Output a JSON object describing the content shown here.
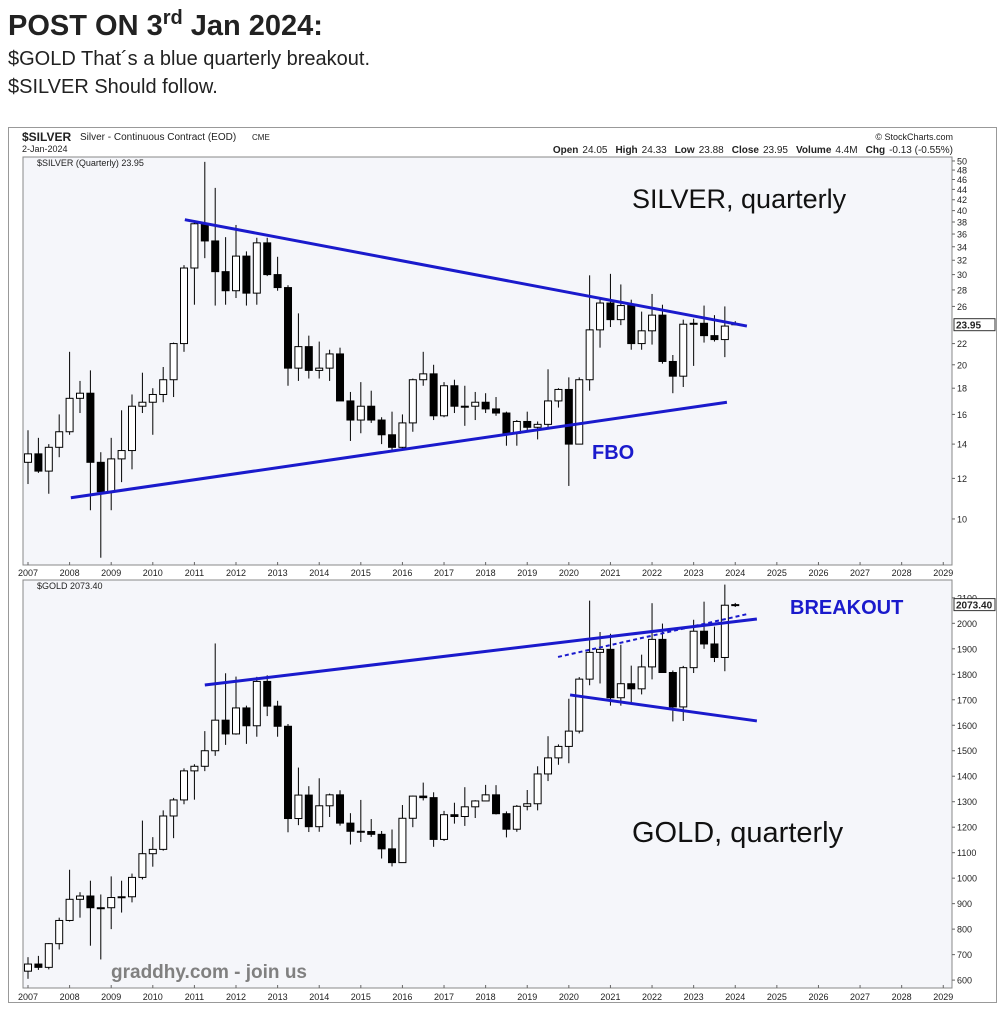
{
  "header": {
    "title": "POST ON 3",
    "title_sup": "rd",
    "title_rest": " Jan 2024:",
    "lines": [
      "$GOLD That´s a blue quarterly breakout.",
      "$SILVER Should follow."
    ]
  },
  "panel": {
    "symbol": "$SILVER",
    "description": "Silver - Continuous Contract (EOD)",
    "exchange": "CME",
    "date": "2-Jan-2024",
    "credit": "© StockCharts.com",
    "quote": [
      {
        "label": "Open",
        "value": "24.05"
      },
      {
        "label": "High",
        "value": "24.33"
      },
      {
        "label": "Low",
        "value": "23.88"
      },
      {
        "label": "Close",
        "value": "23.95"
      },
      {
        "label": "Volume",
        "value": "4.4M"
      },
      {
        "label": "Chg",
        "value": "-0.13 (-0.55%)"
      }
    ]
  },
  "watermark": "graddhy.com - join us",
  "chart_data": [
    {
      "type": "candlestick",
      "legend": "$SILVER (Quarterly) 23.95",
      "last_label": "23.95",
      "log_scale": true,
      "grid": false,
      "up_color": "#ffffff",
      "down_color": "#000000",
      "xlim": [
        2006.88,
        2029.21
      ],
      "xticks": [
        2007,
        2008,
        2009,
        2010,
        2011,
        2012,
        2013,
        2014,
        2015,
        2016,
        2017,
        2018,
        2019,
        2020,
        2021,
        2022,
        2023,
        2024,
        2025,
        2026,
        2027,
        2028,
        2029
      ],
      "ylim": [
        8.13,
        50.9
      ],
      "yticks": [
        10,
        12,
        14,
        16,
        18,
        20,
        22,
        26,
        28,
        30,
        32,
        34,
        36,
        38,
        40,
        42,
        44,
        46,
        48,
        50
      ],
      "x": [
        2007,
        2007.25,
        2007.5,
        2007.75,
        2008,
        2008.25,
        2008.5,
        2008.75,
        2009,
        2009.25,
        2009.5,
        2009.75,
        2010,
        2010.25,
        2010.5,
        2010.75,
        2011,
        2011.25,
        2011.5,
        2011.75,
        2012,
        2012.25,
        2012.5,
        2012.75,
        2013,
        2013.25,
        2013.5,
        2013.75,
        2014,
        2014.25,
        2014.5,
        2014.75,
        2015,
        2015.25,
        2015.5,
        2015.75,
        2016,
        2016.25,
        2016.5,
        2016.75,
        2017,
        2017.25,
        2017.5,
        2017.75,
        2018,
        2018.25,
        2018.5,
        2018.75,
        2019,
        2019.25,
        2019.5,
        2019.75,
        2020,
        2020.25,
        2020.5,
        2020.75,
        2021,
        2021.25,
        2021.5,
        2021.75,
        2022,
        2022.25,
        2022.5,
        2022.75,
        2023,
        2023.25,
        2023.5,
        2023.75,
        2024
      ],
      "open": [
        12.9,
        13.4,
        12.4,
        13.8,
        14.8,
        17.2,
        17.6,
        12.9,
        11.3,
        13.1,
        13.6,
        16.6,
        16.9,
        17.5,
        18.7,
        22.0,
        30.9,
        37.7,
        34.9,
        30.4,
        27.9,
        32.6,
        27.6,
        34.6,
        30.0,
        28.3,
        19.7,
        21.7,
        19.5,
        19.7,
        21.0,
        17.0,
        15.6,
        16.6,
        15.6,
        14.6,
        13.8,
        15.4,
        18.7,
        19.2,
        15.9,
        18.2,
        16.6,
        16.6,
        16.9,
        16.4,
        16.1,
        14.7,
        15.5,
        15.1,
        15.3,
        17.0,
        17.9,
        14.0,
        18.7,
        23.4,
        26.4,
        24.5,
        26.1,
        22.0,
        23.3,
        25.0,
        20.3,
        19.0,
        24.0,
        24.1,
        22.8,
        22.4,
        24.05
      ],
      "high": [
        14.9,
        14.4,
        14.0,
        16.0,
        21.2,
        18.6,
        19.5,
        13.5,
        14.4,
        16.3,
        17.5,
        19.3,
        18.0,
        19.8,
        22.1,
        31.3,
        38.2,
        49.8,
        44.3,
        35.5,
        37.5,
        33.3,
        35.4,
        35.4,
        32.5,
        28.6,
        25.2,
        22.8,
        22.2,
        21.4,
        21.6,
        17.7,
        18.5,
        17.8,
        15.8,
        16.2,
        16.0,
        18.8,
        21.2,
        20.0,
        18.5,
        18.7,
        18.2,
        17.7,
        17.6,
        17.3,
        16.2,
        15.6,
        16.2,
        15.5,
        19.6,
        18.0,
        18.9,
        18.9,
        29.9,
        26.9,
        30.1,
        28.7,
        26.8,
        25.4,
        27.5,
        26.2,
        20.9,
        24.5,
        24.6,
        26.1,
        25.0,
        26.0,
        24.33
      ],
      "low": [
        11.7,
        12.3,
        11.2,
        13.2,
        14.6,
        16.1,
        10.4,
        8.4,
        10.4,
        11.8,
        12.5,
        16.1,
        14.6,
        16.9,
        17.3,
        21.2,
        26.2,
        32.3,
        26.1,
        26.2,
        27.0,
        26.1,
        26.2,
        29.8,
        27.9,
        18.2,
        18.6,
        18.8,
        18.8,
        18.6,
        17.0,
        14.2,
        14.7,
        15.4,
        14.0,
        13.6,
        13.6,
        14.8,
        18.2,
        15.6,
        15.8,
        16.1,
        15.2,
        15.6,
        16.1,
        15.9,
        13.9,
        13.9,
        14.8,
        14.3,
        15.1,
        16.5,
        11.6,
        14.0,
        17.8,
        21.6,
        23.7,
        23.9,
        21.4,
        21.4,
        21.9,
        20.1,
        17.6,
        18.1,
        19.9,
        22.1,
        22.2,
        20.7,
        23.88
      ],
      "close": [
        13.4,
        12.4,
        13.8,
        14.8,
        17.2,
        17.6,
        12.9,
        11.3,
        13.1,
        13.6,
        16.6,
        16.9,
        17.5,
        18.7,
        22.0,
        30.9,
        37.7,
        34.9,
        30.4,
        27.9,
        32.6,
        27.6,
        34.6,
        30.0,
        28.3,
        19.7,
        21.7,
        19.5,
        19.7,
        21.0,
        17.0,
        15.6,
        16.6,
        15.6,
        14.6,
        13.8,
        15.4,
        18.7,
        19.2,
        15.9,
        18.2,
        16.6,
        16.6,
        16.9,
        16.4,
        16.1,
        14.7,
        15.5,
        15.1,
        15.3,
        17.0,
        17.9,
        14.0,
        18.7,
        23.4,
        26.4,
        24.5,
        26.1,
        22.0,
        23.3,
        25.0,
        20.3,
        19.0,
        24.0,
        24.1,
        22.8,
        22.4,
        23.8,
        23.95
      ],
      "trendlines": [
        {
          "color": "#1a1acc",
          "dashed": false,
          "x": [
            2010.77,
            2024.28
          ],
          "y": [
            38.4,
            23.8
          ]
        },
        {
          "color": "#1a1acc",
          "dashed": false,
          "x": [
            2008.03,
            2023.8
          ],
          "y": [
            11.0,
            16.9
          ]
        }
      ],
      "annotations": [
        {
          "text": "SILVER, quarterly",
          "color": "#111111"
        },
        {
          "text": "FBO",
          "color": "#1a1acc"
        }
      ]
    },
    {
      "type": "candlestick",
      "legend": "$GOLD 2073.40",
      "last_label": "2073.40",
      "log_scale": false,
      "grid": false,
      "up_color": "#ffffff",
      "down_color": "#000000",
      "xlim": [
        2006.88,
        2029.21
      ],
      "xticks": [
        2007,
        2008,
        2009,
        2010,
        2011,
        2012,
        2013,
        2014,
        2015,
        2016,
        2017,
        2018,
        2019,
        2020,
        2021,
        2022,
        2023,
        2024,
        2025,
        2026,
        2027,
        2028,
        2029
      ],
      "ylim": [
        569,
        2170
      ],
      "yticks": [
        600,
        700,
        800,
        900,
        1000,
        1100,
        1200,
        1300,
        1400,
        1500,
        1600,
        1700,
        1800,
        1900,
        2000,
        2100
      ],
      "x": [
        2007,
        2007.25,
        2007.5,
        2007.75,
        2008,
        2008.25,
        2008.5,
        2008.75,
        2009,
        2009.25,
        2009.5,
        2009.75,
        2010,
        2010.25,
        2010.5,
        2010.75,
        2011,
        2011.25,
        2011.5,
        2011.75,
        2012,
        2012.25,
        2012.5,
        2012.75,
        2013,
        2013.25,
        2013.5,
        2013.75,
        2014,
        2014.25,
        2014.5,
        2014.75,
        2015,
        2015.25,
        2015.5,
        2015.75,
        2016,
        2016.25,
        2016.5,
        2016.75,
        2017,
        2017.25,
        2017.5,
        2017.75,
        2018,
        2018.25,
        2018.5,
        2018.75,
        2019,
        2019.25,
        2019.5,
        2019.75,
        2020,
        2020.25,
        2020.5,
        2020.75,
        2021,
        2021.25,
        2021.5,
        2021.75,
        2022,
        2022.25,
        2022.5,
        2022.75,
        2023,
        2023.25,
        2023.5,
        2023.75,
        2024
      ],
      "open": [
        635,
        663,
        650,
        743,
        834,
        917,
        930,
        884,
        884,
        924,
        927,
        1003,
        1096,
        1113,
        1244,
        1307,
        1421,
        1439,
        1500,
        1620,
        1566,
        1668,
        1598,
        1772,
        1675,
        1596,
        1234,
        1326,
        1202,
        1284,
        1327,
        1216,
        1184,
        1183,
        1172,
        1115,
        1061,
        1235,
        1322,
        1316,
        1152,
        1249,
        1242,
        1280,
        1303,
        1327,
        1253,
        1192,
        1282,
        1292,
        1409,
        1472,
        1517,
        1577,
        1781,
        1886,
        1898,
        1708,
        1763,
        1743,
        1829,
        1937,
        1807,
        1672,
        1826,
        1969,
        1919,
        1866,
        2071
      ],
      "high": [
        690,
        695,
        745,
        845,
        1033,
        945,
        990,
        936,
        1007,
        990,
        1018,
        1226,
        1161,
        1266,
        1315,
        1431,
        1447,
        1577,
        1921,
        1804,
        1791,
        1677,
        1790,
        1796,
        1696,
        1605,
        1434,
        1361,
        1392,
        1332,
        1345,
        1255,
        1307,
        1232,
        1185,
        1191,
        1287,
        1324,
        1375,
        1337,
        1264,
        1296,
        1357,
        1306,
        1366,
        1365,
        1262,
        1287,
        1346,
        1439,
        1557,
        1525,
        1704,
        1789,
        2089,
        1966,
        1959,
        1916,
        1834,
        1877,
        2079,
        1999,
        1815,
        1833,
        2014,
        2085,
        1987,
        2152,
        2080
      ],
      "low": [
        605,
        640,
        642,
        720,
        830,
        845,
        735,
        681,
        800,
        865,
        905,
        995,
        1045,
        1108,
        1157,
        1290,
        1308,
        1420,
        1480,
        1523,
        1563,
        1527,
        1555,
        1636,
        1555,
        1180,
        1208,
        1181,
        1182,
        1240,
        1206,
        1132,
        1142,
        1162,
        1077,
        1046,
        1060,
        1200,
        1305,
        1123,
        1146,
        1214,
        1205,
        1236,
        1303,
        1250,
        1160,
        1182,
        1266,
        1266,
        1381,
        1445,
        1451,
        1568,
        1757,
        1764,
        1677,
        1677,
        1690,
        1721,
        1780,
        1807,
        1615,
        1617,
        1805,
        1900,
        1848,
        1812,
        2064
      ],
      "close": [
        663,
        650,
        743,
        834,
        917,
        930,
        884,
        884,
        924,
        927,
        1003,
        1096,
        1113,
        1244,
        1307,
        1421,
        1439,
        1500,
        1620,
        1566,
        1668,
        1598,
        1772,
        1675,
        1596,
        1234,
        1326,
        1202,
        1284,
        1327,
        1216,
        1184,
        1183,
        1172,
        1115,
        1061,
        1235,
        1322,
        1316,
        1152,
        1249,
        1242,
        1280,
        1303,
        1327,
        1253,
        1192,
        1282,
        1292,
        1409,
        1472,
        1517,
        1577,
        1781,
        1886,
        1898,
        1708,
        1763,
        1743,
        1829,
        1937,
        1807,
        1672,
        1826,
        1969,
        1919,
        1866,
        2071,
        2073.4
      ],
      "trendlines": [
        {
          "color": "#1a1acc",
          "dashed": false,
          "x": [
            2011.25,
            2024.52
          ],
          "y": [
            1758,
            2017
          ]
        },
        {
          "color": "#1a1acc",
          "dashed": false,
          "x": [
            2020.03,
            2024.52
          ],
          "y": [
            1719,
            1617
          ]
        },
        {
          "color": "#1a1acc",
          "dashed": true,
          "x": [
            2019.74,
            2024.31
          ],
          "y": [
            1868,
            2037
          ]
        }
      ],
      "annotations": [
        {
          "text": "BREAKOUT",
          "color": "#1a1acc"
        },
        {
          "text": "GOLD, quarterly",
          "color": "#111111"
        }
      ]
    }
  ]
}
